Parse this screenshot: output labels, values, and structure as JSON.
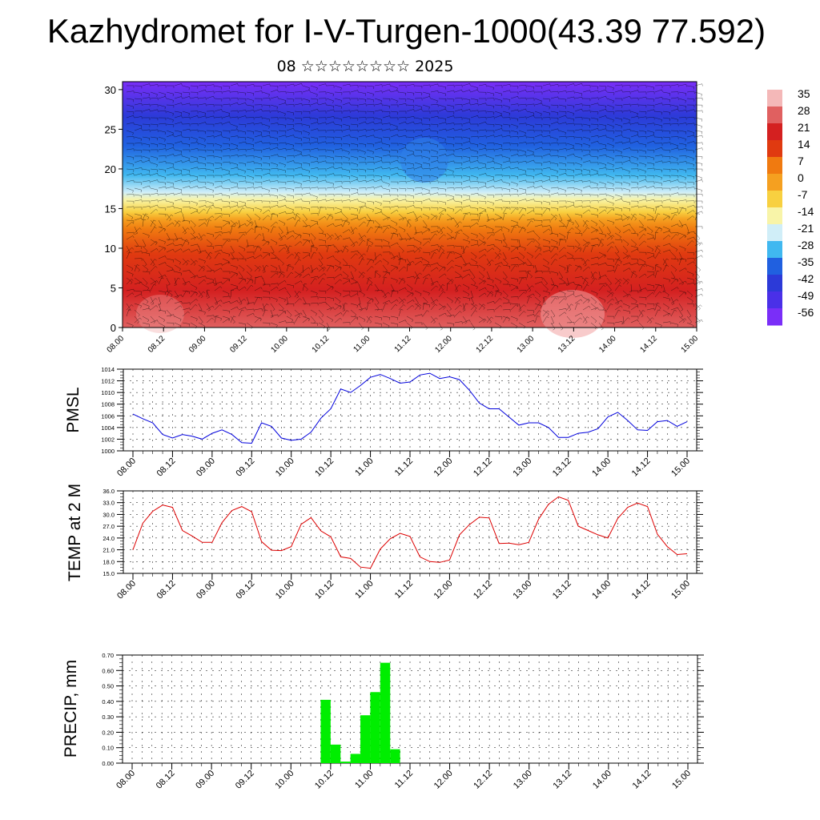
{
  "title": "Kazhydromet for I-V-Turgen-1000(43.39 77.592)",
  "subtitle": "08 ☆☆☆☆☆☆☆☆ 2025",
  "chart_data": [
    {
      "type": "heatmap",
      "ylim": [
        0,
        31
      ],
      "yticks": [
        0,
        5,
        10,
        15,
        20,
        25,
        30
      ],
      "xticks": [
        "08.00",
        "08.12",
        "09.00",
        "09.12",
        "10.00",
        "10.12",
        "11.00",
        "11.12",
        "12.00",
        "12.12",
        "13.00",
        "13.12",
        "14.00",
        "14.12",
        "15.00"
      ],
      "colorbar": {
        "labels": [
          "35",
          "28",
          "21",
          "14",
          "7",
          "0",
          "-7",
          "-14",
          "-21",
          "-28",
          "-35",
          "-42",
          "-49",
          "-56"
        ],
        "colors": [
          "#f4b8b8",
          "#e06060",
          "#d42020",
          "#e03a10",
          "#f07a10",
          "#f5a020",
          "#f8d040",
          "#f8f4a8",
          "#d0eef8",
          "#40b8f0",
          "#2060e0",
          "#2c3ad8",
          "#4a30e8",
          "#7a2ef8"
        ]
      },
      "description": "Temperature by level with wind barbs"
    },
    {
      "type": "line",
      "ylabel": "PMSL",
      "ylim": [
        1000,
        1014
      ],
      "yticks": [
        "1000",
        "1002",
        "1004",
        "1006",
        "1008",
        "1010",
        "1012",
        "1014"
      ],
      "xticks": [
        "08.00",
        "08.12",
        "09.00",
        "09.12",
        "10.00",
        "10.12",
        "11.00",
        "11.12",
        "12.00",
        "12.12",
        "13.00",
        "13.12",
        "14.00",
        "14.12",
        "15.00"
      ],
      "color": "#0000dd",
      "values": [
        1006.3,
        1005.5,
        1004.8,
        1002.8,
        1002.2,
        1002.8,
        1002.5,
        1002.0,
        1003.0,
        1003.6,
        1002.8,
        1001.4,
        1001.3,
        1004.8,
        1004.2,
        1002.2,
        1001.8,
        1002.0,
        1003.2,
        1005.6,
        1007.2,
        1010.6,
        1010.0,
        1011.2,
        1012.6,
        1013.1,
        1012.4,
        1011.6,
        1011.8,
        1013.0,
        1013.3,
        1012.4,
        1012.7,
        1012.2,
        1010.4,
        1008.2,
        1007.2,
        1007.2,
        1005.8,
        1004.4,
        1004.8,
        1004.8,
        1004.0,
        1002.3,
        1002.3,
        1003.0,
        1003.2,
        1003.8,
        1005.8,
        1006.6,
        1005.2,
        1003.6,
        1003.5,
        1005.0,
        1005.2,
        1004.2,
        1005.0
      ]
    },
    {
      "type": "line",
      "ylabel": "TEMP at 2 M",
      "ylim": [
        15,
        36
      ],
      "yticks": [
        "15.0",
        "18.0",
        "21.0",
        "24.0",
        "27.0",
        "30.0",
        "33.0",
        "36.0"
      ],
      "xticks": [
        "08.00",
        "08.12",
        "09.00",
        "09.12",
        "10.00",
        "10.12",
        "11.00",
        "11.12",
        "12.00",
        "12.12",
        "13.00",
        "13.12",
        "14.00",
        "14.12",
        "15.00"
      ],
      "color": "#dd0000",
      "values": [
        21.0,
        27.8,
        30.8,
        32.4,
        31.8,
        25.9,
        24.5,
        22.9,
        22.9,
        27.9,
        31.0,
        32.0,
        30.7,
        23.1,
        20.9,
        20.8,
        21.8,
        27.5,
        29.2,
        25.8,
        24.3,
        19.2,
        18.8,
        16.6,
        16.3,
        21.2,
        23.8,
        25.2,
        24.4,
        19.2,
        18.0,
        17.8,
        18.4,
        24.8,
        27.4,
        29.3,
        29.1,
        22.6,
        22.7,
        22.3,
        22.9,
        28.8,
        32.6,
        34.5,
        33.6,
        27.0,
        25.9,
        24.8,
        24.0,
        29.0,
        31.8,
        32.9,
        32.0,
        25.0,
        21.8,
        19.8,
        20.0
      ]
    },
    {
      "type": "bar",
      "ylabel": "PRECIP, mm",
      "ylim": [
        0,
        0.7
      ],
      "yticks": [
        "0.00",
        "0.10",
        "0.20",
        "0.30",
        "0.40",
        "0.50",
        "0.60",
        "0.70"
      ],
      "xticks": [
        "08.00",
        "08.12",
        "09.00",
        "09.12",
        "10.00",
        "10.12",
        "11.00",
        "11.12",
        "12.00",
        "12.12",
        "13.00",
        "13.12",
        "14.00",
        "14.12",
        "15.00"
      ],
      "color": "#00ee00",
      "values": [
        0,
        0,
        0,
        0,
        0,
        0,
        0,
        0,
        0,
        0,
        0,
        0,
        0,
        0,
        0,
        0,
        0,
        0,
        0,
        0.41,
        0.12,
        0.01,
        0.06,
        0.31,
        0.46,
        0.65,
        0.09,
        0,
        0,
        0,
        0,
        0,
        0,
        0,
        0,
        0,
        0,
        0,
        0,
        0,
        0,
        0,
        0,
        0,
        0,
        0,
        0,
        0,
        0,
        0,
        0,
        0,
        0,
        0,
        0,
        0,
        0
      ]
    }
  ]
}
